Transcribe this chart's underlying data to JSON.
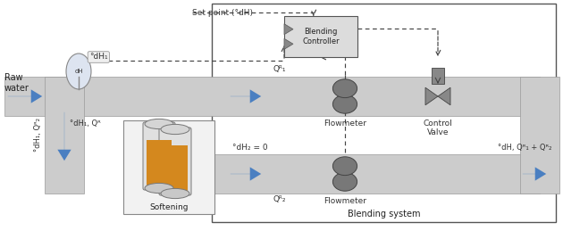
{
  "bg_color": "#ffffff",
  "pipe_color": "#cccccc",
  "pipe_edge": "#999999",
  "arrow_color": "#4a7fc1",
  "dashed_color": "#444444",
  "tank_orange": "#d4881e",
  "labels": {
    "raw_water": "Raw\nwater",
    "dh1_qr": "°dH₁, Qᴿ",
    "dh1_qr2": "°dH₁, Qᴿ₂",
    "set_point": "Set point (°dH)",
    "dh1_sensor": "°dH₁",
    "qr1": "Qᴿ₁",
    "qr2": "Qᴿ₂",
    "dh2_0": "°dH₂ = 0",
    "flowmeter1": "Flowmeter",
    "flowmeter2": "Flowmeter",
    "control_valve": "Control\nValve",
    "output": "°dH, Qᴿ₁ + Qᴿ₂",
    "softening": "Softening",
    "blending": "Blending system",
    "controller": "Blending\nController"
  }
}
